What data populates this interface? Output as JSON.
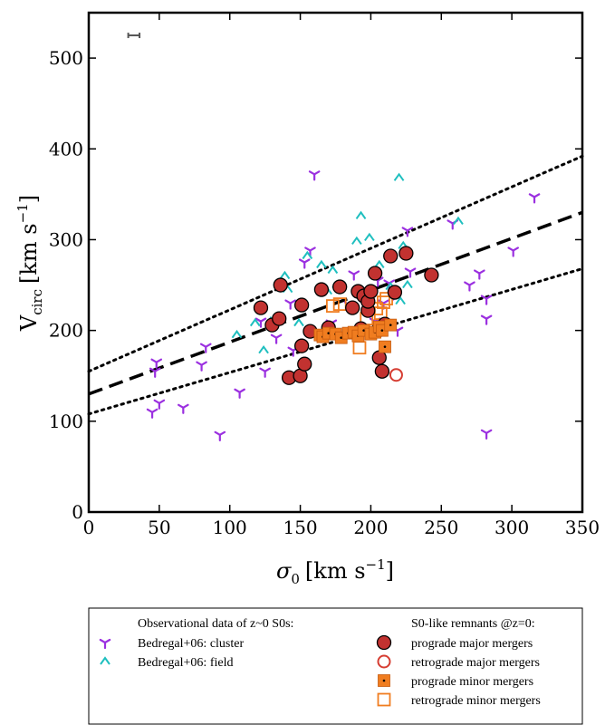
{
  "chart_data": {
    "type": "scatter",
    "title": "",
    "xlabel": {
      "base": "σ",
      "sub": "0",
      "unit_pre": "[km s",
      "sup": "−1",
      "unit_post": "]"
    },
    "ylabel": {
      "base": "V",
      "sub": "circ",
      "unit_pre": "[km s",
      "sup": "−1",
      "unit_post": "]"
    },
    "xlim": [
      0,
      350
    ],
    "ylim": [
      0,
      550
    ],
    "xticks": [
      0,
      50,
      100,
      150,
      200,
      250,
      300,
      350
    ],
    "yticks": [
      0,
      100,
      200,
      300,
      400,
      500
    ],
    "grid": false,
    "error_bar": {
      "x": 32,
      "y": 525,
      "xerr": 4,
      "color": "#555555"
    },
    "fit_lines": [
      {
        "name": "",
        "style": "dashed",
        "x": [
          0,
          350
        ],
        "y": [
          130,
          330
        ]
      },
      {
        "name": "",
        "style": "dotted",
        "x": [
          0,
          350
        ],
        "y": [
          155,
          392
        ]
      },
      {
        "name": "",
        "style": "dotted",
        "x": [
          0,
          350
        ],
        "y": [
          108,
          268
        ]
      }
    ],
    "legend_headers": {
      "left": "Observational data of z~0 S0s:",
      "right": "S0-like remnants @z=0:"
    },
    "series": [
      {
        "name": "Bedregal+06: cluster",
        "marker": "tri",
        "color": "#9b30e0",
        "legend_col": "left",
        "points": [
          [
            45,
            110
          ],
          [
            47,
            155
          ],
          [
            48,
            165
          ],
          [
            50,
            120
          ],
          [
            67,
            115
          ],
          [
            80,
            162
          ],
          [
            83,
            182
          ],
          [
            93,
            85
          ],
          [
            107,
            132
          ],
          [
            122,
            210
          ],
          [
            125,
            155
          ],
          [
            133,
            192
          ],
          [
            143,
            230
          ],
          [
            145,
            178
          ],
          [
            153,
            275
          ],
          [
            157,
            288
          ],
          [
            160,
            372
          ],
          [
            172,
            208
          ],
          [
            185,
            228
          ],
          [
            188,
            262
          ],
          [
            194,
            240
          ],
          [
            203,
            210
          ],
          [
            205,
            255
          ],
          [
            209,
            230
          ],
          [
            213,
            252
          ],
          [
            216,
            240
          ],
          [
            219,
            200
          ],
          [
            226,
            310
          ],
          [
            228,
            265
          ],
          [
            258,
            318
          ],
          [
            270,
            250
          ],
          [
            277,
            263
          ],
          [
            282,
            213
          ],
          [
            282,
            235
          ],
          [
            282,
            87
          ],
          [
            301,
            288
          ],
          [
            316,
            347
          ]
        ]
      },
      {
        "name": "Bedregal+06: field",
        "marker": "caret",
        "color": "#1fbfbf",
        "legend_col": "left",
        "points": [
          [
            105,
            195
          ],
          [
            118,
            208
          ],
          [
            124,
            178
          ],
          [
            129,
            210
          ],
          [
            139,
            260
          ],
          [
            141,
            245
          ],
          [
            149,
            208
          ],
          [
            155,
            282
          ],
          [
            165,
            272
          ],
          [
            169,
            243
          ],
          [
            173,
            266
          ],
          [
            176,
            250
          ],
          [
            190,
            298
          ],
          [
            193,
            326
          ],
          [
            199,
            302
          ],
          [
            206,
            272
          ],
          [
            214,
            248
          ],
          [
            220,
            368
          ],
          [
            221,
            232
          ],
          [
            223,
            293
          ],
          [
            226,
            250
          ],
          [
            262,
            320
          ]
        ]
      },
      {
        "name": "prograde major mergers",
        "marker": "circle-filled",
        "color": "#c23230",
        "stroke": "#000000",
        "legend_col": "right",
        "points": [
          [
            122,
            225
          ],
          [
            130,
            206
          ],
          [
            135,
            213
          ],
          [
            136,
            250
          ],
          [
            142,
            148
          ],
          [
            150,
            150
          ],
          [
            151,
            228
          ],
          [
            151,
            183
          ],
          [
            153,
            163
          ],
          [
            157,
            199
          ],
          [
            165,
            245
          ],
          [
            170,
            203
          ],
          [
            178,
            248
          ],
          [
            187,
            225
          ],
          [
            191,
            243
          ],
          [
            193,
            202
          ],
          [
            195,
            238
          ],
          [
            198,
            222
          ],
          [
            198,
            232
          ],
          [
            200,
            243
          ],
          [
            203,
            263
          ],
          [
            205,
            200
          ],
          [
            206,
            170
          ],
          [
            208,
            155
          ],
          [
            210,
            207
          ],
          [
            214,
            282
          ],
          [
            217,
            242
          ],
          [
            225,
            285
          ],
          [
            243,
            261
          ]
        ]
      },
      {
        "name": "retrograde major mergers",
        "marker": "circle-open",
        "color": "#d63d32",
        "legend_col": "right",
        "points": [
          [
            218,
            151
          ]
        ]
      },
      {
        "name": "prograde minor mergers",
        "marker": "square-filled",
        "color": "#f07d20",
        "legend_col": "right",
        "points": [
          [
            164,
            195
          ],
          [
            166,
            193
          ],
          [
            170,
            197
          ],
          [
            175,
            196
          ],
          [
            179,
            192
          ],
          [
            184,
            197
          ],
          [
            188,
            198
          ],
          [
            191,
            194
          ],
          [
            195,
            200
          ],
          [
            200,
            196
          ],
          [
            203,
            198
          ],
          [
            206,
            204
          ],
          [
            208,
            200
          ],
          [
            210,
            182
          ],
          [
            214,
            206
          ]
        ]
      },
      {
        "name": "retrograde minor mergers",
        "marker": "square-open",
        "color": "#f07d20",
        "legend_col": "right",
        "points": [
          [
            173,
            227
          ],
          [
            178,
            229
          ],
          [
            192,
            181
          ],
          [
            197,
            213
          ],
          [
            204,
            224
          ],
          [
            207,
            219
          ],
          [
            209,
            231
          ],
          [
            211,
            235
          ]
        ]
      }
    ]
  }
}
